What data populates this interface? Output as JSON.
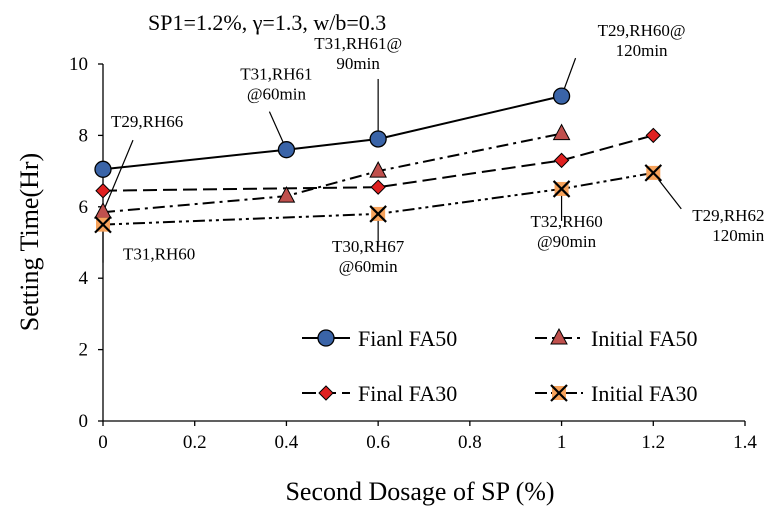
{
  "chart_data": {
    "type": "line",
    "title": "SP1=1.2%, γ=1.3, w/b=0.3",
    "xlabel": "Second Dosage of SP (%)",
    "ylabel": "Setting Time(Hr)",
    "xlim": [
      0,
      1.4
    ],
    "ylim": [
      0,
      10
    ],
    "xticks": [
      "0",
      "0.2",
      "0.4",
      "0.6",
      "0.8",
      "1",
      "1.2",
      "1.4"
    ],
    "yticks": [
      "0",
      "2",
      "4",
      "6",
      "8",
      "10"
    ],
    "grid": false,
    "legend_position": "lower-right",
    "series": [
      {
        "name": "Fianl FA50",
        "marker": "circle",
        "line": "solid",
        "color": "#3a64a8",
        "x": [
          0,
          0.4,
          0.6,
          1.0
        ],
        "y": [
          7.05,
          7.6,
          7.9,
          9.1
        ]
      },
      {
        "name": "Initial FA50",
        "marker": "triangle",
        "line": "dashdot",
        "color": "#c0504d",
        "x": [
          0,
          0.4,
          0.6,
          1.0
        ],
        "y": [
          5.85,
          6.3,
          7.0,
          8.05
        ]
      },
      {
        "name": "Final FA30",
        "marker": "diamond",
        "line": "dashed",
        "color": "#e02020",
        "x": [
          0,
          0.6,
          1.0,
          1.2
        ],
        "y": [
          6.45,
          6.55,
          7.3,
          8.0
        ]
      },
      {
        "name": "Initial FA30",
        "marker": "x-box",
        "line": "dashdotdot",
        "color": "#f7a35c",
        "x": [
          0,
          0.6,
          1.0,
          1.2
        ],
        "y": [
          5.5,
          5.8,
          6.5,
          6.95
        ]
      }
    ],
    "annotations": [
      {
        "lines": [
          "T29,RH66"
        ],
        "x": 0,
        "y": 5.85
      },
      {
        "lines": [
          "T31,RH60"
        ],
        "x": 0,
        "y": 5.5
      },
      {
        "lines": [
          "T31,RH61",
          "@60min"
        ],
        "x": 0.4,
        "y": 7.6
      },
      {
        "lines": [
          "T31,RH61@",
          "90min"
        ],
        "x": 0.6,
        "y": 7.9
      },
      {
        "lines": [
          "T29,RH60@",
          "120min"
        ],
        "x": 1.0,
        "y": 9.1
      },
      {
        "lines": [
          "T30,RH67",
          "@60min"
        ],
        "x": 0.6,
        "y": 5.8
      },
      {
        "lines": [
          "T32,RH60",
          "@90min"
        ],
        "x": 1.0,
        "y": 6.5
      },
      {
        "lines": [
          "T29,RH62 @",
          "120min"
        ],
        "x": 1.2,
        "y": 6.95
      }
    ]
  }
}
